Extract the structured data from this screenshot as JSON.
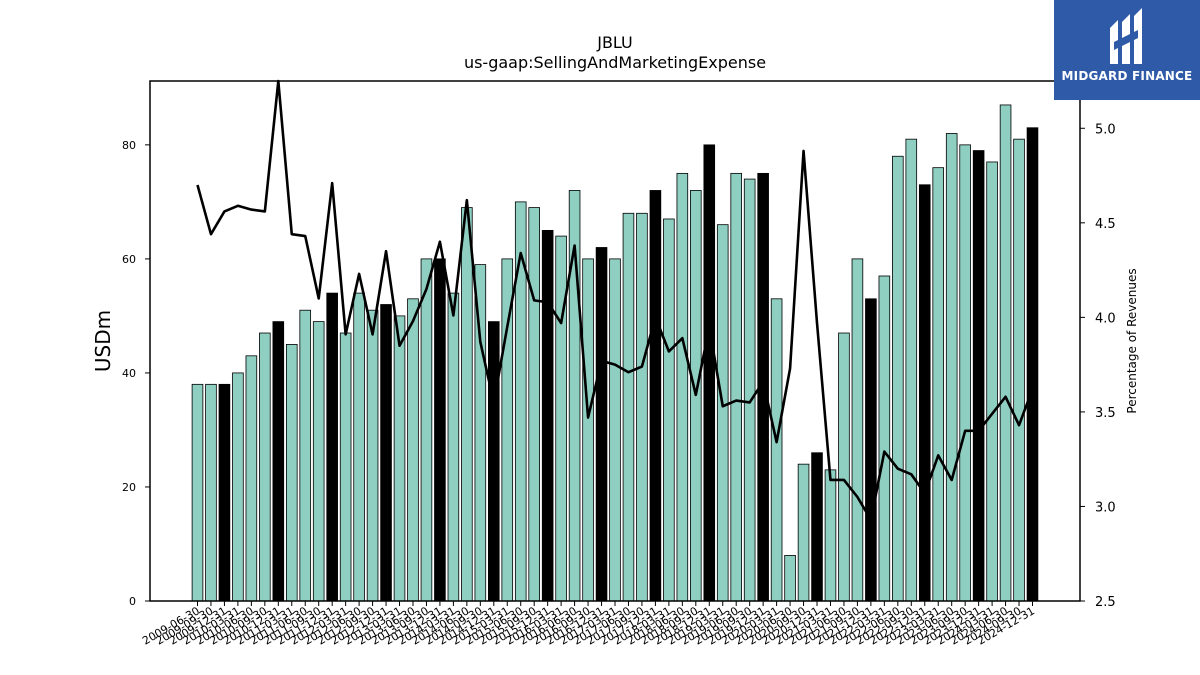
{
  "chart_data": {
    "type": "bar",
    "title": "JBLU",
    "subtitle": "us-gaap:SellingAndMarketingExpense",
    "ylabel": "USDm",
    "y2label": "Percentage of Revenues",
    "ylim": [
      0,
      91.2
    ],
    "y2lim": [
      2.5,
      5.25
    ],
    "yticks": [
      0,
      20,
      40,
      60,
      80
    ],
    "y2ticks": [
      "2.5",
      "3.0",
      "3.5",
      "4.0",
      "4.5",
      "5.0"
    ],
    "categories": [
      "2009-06-30",
      "2009-09-30",
      "2009-12-31",
      "2010-03-31",
      "2010-06-30",
      "2010-09-30",
      "2010-12-31",
      "2011-03-31",
      "2011-06-30",
      "2011-09-30",
      "2011-12-31",
      "2012-03-31",
      "2012-06-30",
      "2012-09-30",
      "2012-12-31",
      "2013-03-31",
      "2013-06-30",
      "2013-09-30",
      "2013-12-31",
      "2014-03-31",
      "2014-06-30",
      "2014-09-30",
      "2014-12-31",
      "2015-03-31",
      "2015-06-30",
      "2015-09-30",
      "2015-12-31",
      "2016-03-31",
      "2016-06-30",
      "2016-09-30",
      "2016-12-31",
      "2017-03-31",
      "2017-06-30",
      "2017-09-30",
      "2017-12-31",
      "2018-03-31",
      "2018-06-30",
      "2018-09-30",
      "2018-12-31",
      "2019-03-31",
      "2019-06-30",
      "2019-09-30",
      "2019-12-31",
      "2020-03-31",
      "2020-06-30",
      "2020-09-30",
      "2020-12-31",
      "2021-03-31",
      "2021-06-30",
      "2021-09-30",
      "2021-12-31",
      "2022-03-31",
      "2022-06-30",
      "2022-09-30",
      "2022-12-31",
      "2023-03-31",
      "2023-06-30",
      "2023-09-30",
      "2023-12-31",
      "2024-03-31",
      "2024-06-30",
      "2024-09-30",
      "2024-12-31"
    ],
    "series": [
      {
        "type": "bar",
        "values": [
          38,
          38,
          38,
          40,
          43,
          47,
          49,
          45,
          51,
          49,
          54,
          47,
          54,
          51,
          52,
          50,
          53,
          60,
          60,
          54,
          69,
          59,
          49,
          60,
          70,
          69,
          65,
          64,
          72,
          60,
          62,
          60,
          68,
          68,
          72,
          67,
          75,
          72,
          80,
          66,
          75,
          74,
          75,
          53,
          8,
          24,
          26,
          23,
          47,
          60,
          53,
          57,
          78,
          81,
          73,
          76,
          82,
          80,
          79,
          77,
          87,
          81,
          83
        ],
        "annual": [
          false,
          false,
          true,
          false,
          false,
          false,
          true,
          false,
          false,
          false,
          true,
          false,
          false,
          false,
          true,
          false,
          false,
          false,
          true,
          false,
          false,
          false,
          true,
          false,
          false,
          false,
          true,
          false,
          false,
          false,
          true,
          false,
          false,
          false,
          true,
          false,
          false,
          false,
          true,
          false,
          false,
          false,
          true,
          false,
          false,
          false,
          true,
          false,
          false,
          false,
          true,
          false,
          false,
          false,
          true,
          false,
          false,
          false,
          true,
          false,
          false,
          false,
          true
        ],
        "color_quarter": "#8ecfc2",
        "color_annual": "#000000"
      },
      {
        "type": "line",
        "axis": "right",
        "color": "#000000",
        "values": [
          4.7,
          4.44,
          4.56,
          4.59,
          4.57,
          4.56,
          5.25,
          4.44,
          4.43,
          4.1,
          4.71,
          3.91,
          4.23,
          3.91,
          4.35,
          3.85,
          3.98,
          4.15,
          4.4,
          4.01,
          4.62,
          3.87,
          3.55,
          3.95,
          4.34,
          4.09,
          4.08,
          3.97,
          4.38,
          3.47,
          3.77,
          3.75,
          3.71,
          3.74,
          4.0,
          3.82,
          3.89,
          3.59,
          3.95,
          3.53,
          3.56,
          3.55,
          3.66,
          3.34,
          3.73,
          4.88,
          3.97,
          3.14,
          3.14,
          3.05,
          2.93,
          3.29,
          3.2,
          3.17,
          3.07,
          3.27,
          3.14,
          3.4,
          3.4,
          3.49,
          3.58,
          3.43,
          3.62
        ]
      }
    ]
  },
  "logo": {
    "text": "MIDGARD FINANCE",
    "bg": "#2f5aa8"
  }
}
